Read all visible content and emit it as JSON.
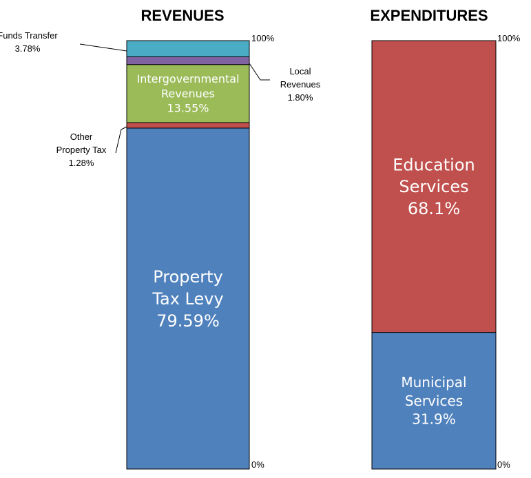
{
  "chart_data": [
    {
      "type": "bar",
      "stacked": true,
      "title": "REVENUES",
      "ylim": [
        0,
        100
      ],
      "tick_labels": [
        "0%",
        "100%"
      ],
      "segments": [
        {
          "name": "Property Tax Levy",
          "lines": [
            "Property",
            "Tax Levy"
          ],
          "value_label": "79.59%",
          "value": 79.59,
          "color": "#4f81bd",
          "label_style": "inside-large"
        },
        {
          "name": "Other Property Tax",
          "lines": [
            "Other",
            "Property Tax"
          ],
          "value_label": "1.28%",
          "value": 1.28,
          "color": "#c0504d",
          "label_style": "callout-left"
        },
        {
          "name": "Intergovernmental Revenues",
          "lines": [
            "Intergovernmental",
            "Revenues"
          ],
          "value_label": "13.55%",
          "value": 13.55,
          "color": "#9bbb59",
          "label_style": "inside-small"
        },
        {
          "name": "Local Revenues",
          "lines": [
            "Local",
            "Revenues"
          ],
          "value_label": "1.80%",
          "value": 1.8,
          "color": "#8064a2",
          "label_style": "callout-right"
        },
        {
          "name": "Funds Transfer",
          "lines": [
            "Funds Transfer"
          ],
          "value_label": "3.78%",
          "value": 3.78,
          "color": "#4bacc6",
          "label_style": "callout-left-top"
        }
      ]
    },
    {
      "type": "bar",
      "stacked": true,
      "title": "EXPENDITURES",
      "ylim": [
        0,
        100
      ],
      "tick_labels": [
        "0%",
        "100%"
      ],
      "segments": [
        {
          "name": "Municipal Services",
          "lines": [
            "Municipal",
            "Services"
          ],
          "value_label": "31.9%",
          "value": 31.9,
          "color": "#4f81bd",
          "label_style": "inside-medium"
        },
        {
          "name": "Education Services",
          "lines": [
            "Education",
            "Services"
          ],
          "value_label": "68.1%",
          "value": 68.1,
          "color": "#c0504d",
          "label_style": "inside-large"
        }
      ]
    }
  ]
}
